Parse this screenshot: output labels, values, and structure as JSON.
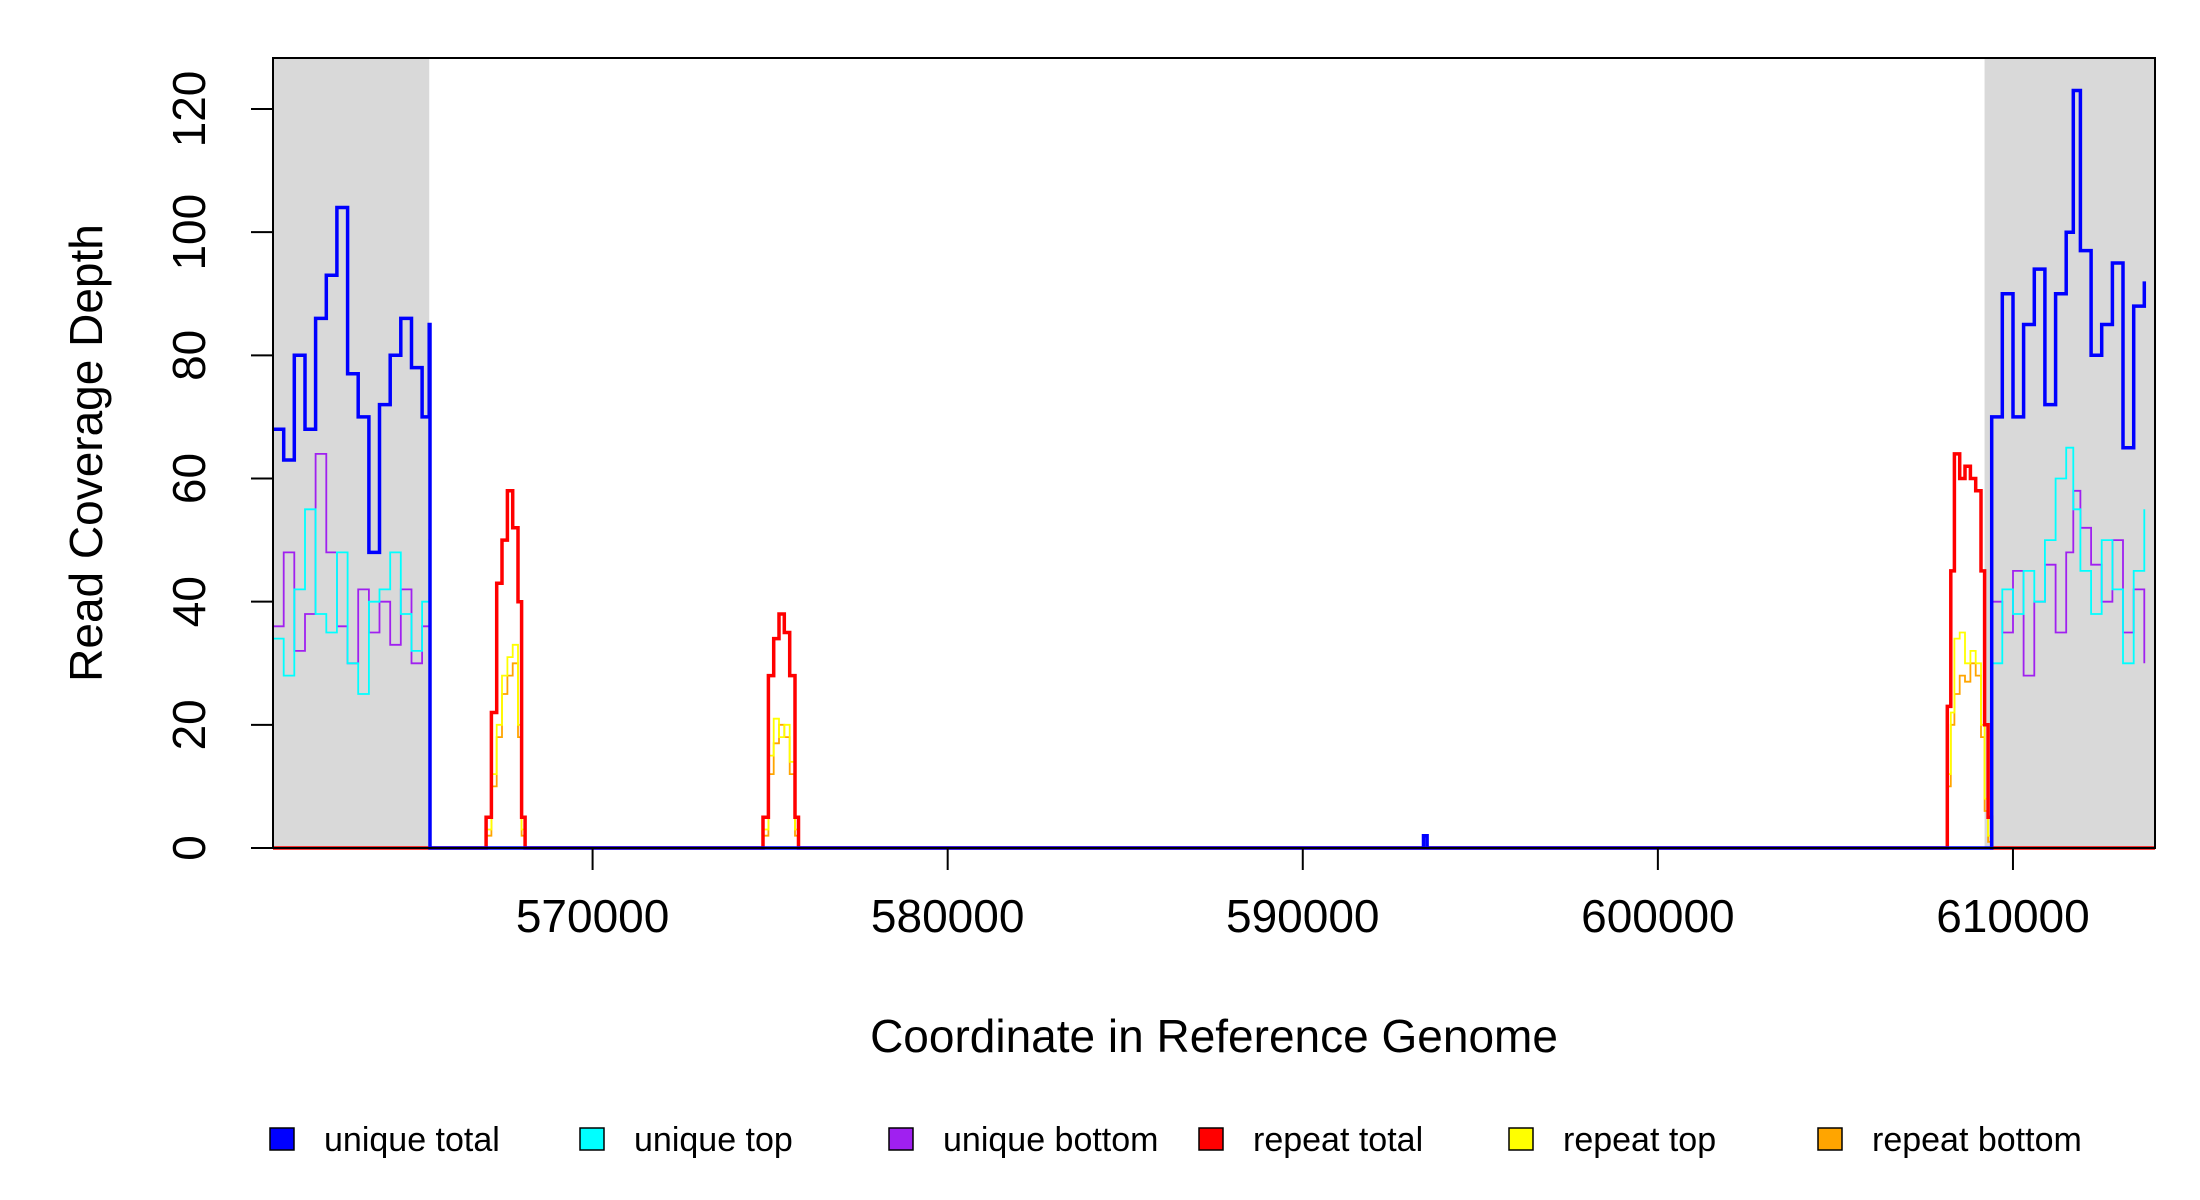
{
  "chart_data": {
    "type": "line",
    "xlabel": "Coordinate in Reference Genome",
    "ylabel": "Read Coverage Depth",
    "xlim": [
      561000,
      614000
    ],
    "ylim": [
      0,
      128
    ],
    "x_ticks": [
      570000,
      580000,
      590000,
      600000,
      610000
    ],
    "x_tick_labels": [
      "570000",
      "580000",
      "590000",
      "600000",
      "610000"
    ],
    "y_ticks": [
      0,
      20,
      40,
      60,
      80,
      100,
      120
    ],
    "y_tick_labels": [
      "0",
      "20",
      "40",
      "60",
      "80",
      "100",
      "120"
    ],
    "shaded_regions": [
      {
        "start": 561000,
        "end": 565400,
        "color": "#d9d9d9"
      },
      {
        "start": 609200,
        "end": 614000,
        "color": "#d9d9d9"
      }
    ],
    "series": [
      {
        "name": "unique total",
        "color": "#0000ff",
        "points": [
          [
            561000,
            68
          ],
          [
            561300,
            63
          ],
          [
            561600,
            80
          ],
          [
            561900,
            68
          ],
          [
            562200,
            86
          ],
          [
            562500,
            93
          ],
          [
            562800,
            104
          ],
          [
            563100,
            77
          ],
          [
            563400,
            70
          ],
          [
            563700,
            48
          ],
          [
            564000,
            72
          ],
          [
            564300,
            80
          ],
          [
            564600,
            86
          ],
          [
            564900,
            78
          ],
          [
            565200,
            70
          ],
          [
            565400,
            85
          ],
          [
            565420,
            0
          ],
          [
            593300,
            0
          ],
          [
            593400,
            2
          ],
          [
            593500,
            0
          ],
          [
            609300,
            0
          ],
          [
            609400,
            70
          ],
          [
            609700,
            90
          ],
          [
            610000,
            70
          ],
          [
            610300,
            85
          ],
          [
            610600,
            94
          ],
          [
            610900,
            72
          ],
          [
            611200,
            90
          ],
          [
            611500,
            100
          ],
          [
            611700,
            123
          ],
          [
            611900,
            97
          ],
          [
            612200,
            80
          ],
          [
            612500,
            85
          ],
          [
            612800,
            95
          ],
          [
            613100,
            65
          ],
          [
            613400,
            88
          ],
          [
            613700,
            92
          ]
        ]
      },
      {
        "name": "unique top",
        "color": "#00ffff",
        "points": [
          [
            561000,
            34
          ],
          [
            561300,
            28
          ],
          [
            561600,
            42
          ],
          [
            561900,
            55
          ],
          [
            562200,
            38
          ],
          [
            562500,
            35
          ],
          [
            562800,
            48
          ],
          [
            563100,
            30
          ],
          [
            563400,
            25
          ],
          [
            563700,
            40
          ],
          [
            564000,
            42
          ],
          [
            564300,
            48
          ],
          [
            564600,
            38
          ],
          [
            564900,
            32
          ],
          [
            565200,
            40
          ],
          [
            565400,
            50
          ],
          [
            565420,
            0
          ],
          [
            609300,
            0
          ],
          [
            609400,
            30
          ],
          [
            609700,
            42
          ],
          [
            610000,
            38
          ],
          [
            610300,
            45
          ],
          [
            610600,
            40
          ],
          [
            610900,
            50
          ],
          [
            611200,
            60
          ],
          [
            611500,
            65
          ],
          [
            611700,
            55
          ],
          [
            611900,
            45
          ],
          [
            612200,
            38
          ],
          [
            612500,
            50
          ],
          [
            612800,
            42
          ],
          [
            613100,
            30
          ],
          [
            613400,
            45
          ],
          [
            613700,
            55
          ]
        ]
      },
      {
        "name": "unique bottom",
        "color": "#a020f0",
        "points": [
          [
            561000,
            36
          ],
          [
            561300,
            48
          ],
          [
            561600,
            32
          ],
          [
            561900,
            38
          ],
          [
            562200,
            64
          ],
          [
            562500,
            48
          ],
          [
            562800,
            36
          ],
          [
            563100,
            30
          ],
          [
            563400,
            42
          ],
          [
            563700,
            35
          ],
          [
            564000,
            40
          ],
          [
            564300,
            33
          ],
          [
            564600,
            42
          ],
          [
            564900,
            30
          ],
          [
            565200,
            36
          ],
          [
            565420,
            0
          ],
          [
            609300,
            0
          ],
          [
            609400,
            40
          ],
          [
            609700,
            35
          ],
          [
            610000,
            45
          ],
          [
            610300,
            28
          ],
          [
            610600,
            40
          ],
          [
            610900,
            46
          ],
          [
            611200,
            35
          ],
          [
            611500,
            48
          ],
          [
            611700,
            58
          ],
          [
            611900,
            52
          ],
          [
            612200,
            46
          ],
          [
            612500,
            40
          ],
          [
            612800,
            50
          ],
          [
            613100,
            35
          ],
          [
            613400,
            42
          ],
          [
            613700,
            30
          ]
        ]
      },
      {
        "name": "repeat total",
        "color": "#ff0000",
        "points": [
          [
            561000,
            0
          ],
          [
            566900,
            0
          ],
          [
            567000,
            5
          ],
          [
            567150,
            22
          ],
          [
            567300,
            43
          ],
          [
            567450,
            50
          ],
          [
            567600,
            58
          ],
          [
            567750,
            52
          ],
          [
            567900,
            40
          ],
          [
            568000,
            5
          ],
          [
            568100,
            0
          ],
          [
            574700,
            0
          ],
          [
            574800,
            5
          ],
          [
            574950,
            28
          ],
          [
            575100,
            34
          ],
          [
            575250,
            38
          ],
          [
            575400,
            35
          ],
          [
            575550,
            28
          ],
          [
            575700,
            5
          ],
          [
            575800,
            0
          ],
          [
            608100,
            0
          ],
          [
            608150,
            23
          ],
          [
            608250,
            45
          ],
          [
            608350,
            64
          ],
          [
            608500,
            60
          ],
          [
            608650,
            62
          ],
          [
            608800,
            60
          ],
          [
            608950,
            58
          ],
          [
            609100,
            45
          ],
          [
            609200,
            20
          ],
          [
            609300,
            5
          ],
          [
            609400,
            0
          ],
          [
            614000,
            0
          ]
        ]
      },
      {
        "name": "repeat top",
        "color": "#ffff00",
        "points": [
          [
            561000,
            0
          ],
          [
            566900,
            0
          ],
          [
            567000,
            3
          ],
          [
            567150,
            12
          ],
          [
            567300,
            20
          ],
          [
            567450,
            28
          ],
          [
            567600,
            31
          ],
          [
            567750,
            33
          ],
          [
            567900,
            20
          ],
          [
            568000,
            3
          ],
          [
            568100,
            0
          ],
          [
            574700,
            0
          ],
          [
            574800,
            3
          ],
          [
            574950,
            15
          ],
          [
            575100,
            21
          ],
          [
            575250,
            18
          ],
          [
            575400,
            20
          ],
          [
            575550,
            14
          ],
          [
            575700,
            3
          ],
          [
            575800,
            0
          ],
          [
            608100,
            0
          ],
          [
            608150,
            12
          ],
          [
            608250,
            22
          ],
          [
            608350,
            34
          ],
          [
            608500,
            35
          ],
          [
            608650,
            30
          ],
          [
            608800,
            32
          ],
          [
            608950,
            30
          ],
          [
            609100,
            20
          ],
          [
            609200,
            8
          ],
          [
            609300,
            2
          ],
          [
            609400,
            0
          ],
          [
            614000,
            0
          ]
        ]
      },
      {
        "name": "repeat bottom",
        "color": "#ffa500",
        "points": [
          [
            561000,
            0
          ],
          [
            566900,
            0
          ],
          [
            567000,
            2
          ],
          [
            567150,
            10
          ],
          [
            567300,
            18
          ],
          [
            567450,
            25
          ],
          [
            567600,
            28
          ],
          [
            567750,
            30
          ],
          [
            567900,
            18
          ],
          [
            568000,
            2
          ],
          [
            568100,
            0
          ],
          [
            574700,
            0
          ],
          [
            574800,
            2
          ],
          [
            574950,
            12
          ],
          [
            575100,
            17
          ],
          [
            575250,
            20
          ],
          [
            575400,
            18
          ],
          [
            575550,
            12
          ],
          [
            575700,
            2
          ],
          [
            575800,
            0
          ],
          [
            608100,
            0
          ],
          [
            608150,
            10
          ],
          [
            608250,
            20
          ],
          [
            608350,
            25
          ],
          [
            608500,
            28
          ],
          [
            608650,
            27
          ],
          [
            608800,
            30
          ],
          [
            608950,
            28
          ],
          [
            609100,
            18
          ],
          [
            609200,
            6
          ],
          [
            609300,
            1
          ],
          [
            609400,
            0
          ],
          [
            614000,
            0
          ]
        ]
      }
    ]
  }
}
